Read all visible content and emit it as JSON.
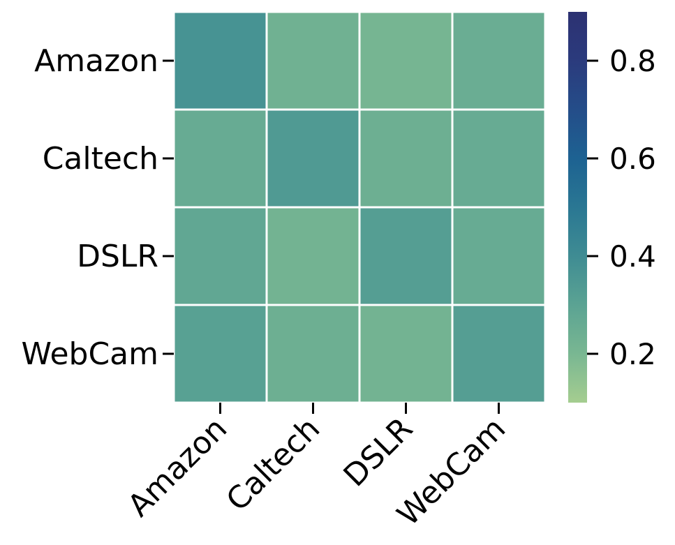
{
  "chart_data": {
    "type": "heatmap",
    "title": "",
    "xlabel": "",
    "ylabel": "",
    "x_categories": [
      "Amazon",
      "Caltech",
      "DSLR",
      "WebCam"
    ],
    "y_categories": [
      "Amazon",
      "Caltech",
      "DSLR",
      "WebCam"
    ],
    "values": [
      [
        0.37,
        0.23,
        0.21,
        0.25
      ],
      [
        0.26,
        0.34,
        0.24,
        0.26
      ],
      [
        0.28,
        0.22,
        0.32,
        0.26
      ],
      [
        0.31,
        0.24,
        0.22,
        0.32
      ]
    ],
    "colorbar": {
      "range": [
        0.1,
        0.9
      ],
      "ticks": [
        0.2,
        0.4,
        0.6,
        0.8
      ],
      "tick_labels": [
        "0.2",
        "0.4",
        "0.6",
        "0.8"
      ],
      "colormap": "crest",
      "stops": [
        "#a5cd90",
        "#79b792",
        "#5ba393",
        "#3f8c93",
        "#2a7793",
        "#1d6292",
        "#244d89",
        "#2b3b7d",
        "#2c3172"
      ]
    },
    "x_tick_rotation_deg": 45
  }
}
